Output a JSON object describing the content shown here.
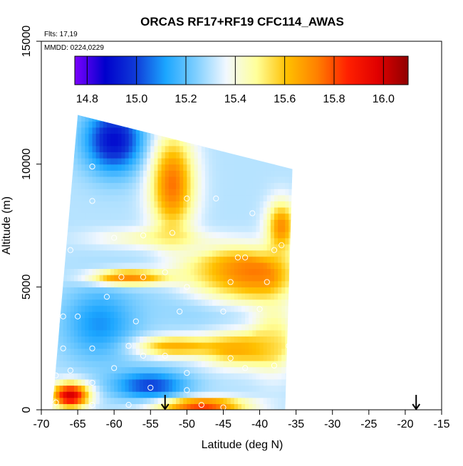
{
  "chart_data": {
    "type": "heatmap",
    "title": "ORCAS RF17+RF19 CFC114_AWAS",
    "annotations": {
      "flights": "Flts: 17,19",
      "dates": "MMDD: 0224,0229"
    },
    "xlabel": "Latitude (deg N)",
    "ylabel": "Altitude (m)",
    "xlim": [
      -70,
      -15
    ],
    "ylim": [
      0,
      15000
    ],
    "xticks": [
      "-70",
      "-65",
      "-60",
      "-55",
      "-50",
      "-45",
      "-40",
      "-35",
      "-30",
      "-25",
      "-20",
      "-15"
    ],
    "yticks": [
      "0",
      "5000",
      "10000",
      "15000"
    ],
    "colorbar": {
      "range": [
        14.75,
        16.1
      ],
      "ticks": [
        "14.8",
        "15.0",
        "15.2",
        "15.4",
        "15.6",
        "15.8",
        "16.0"
      ],
      "colors": [
        "#7b00ff",
        "#0000cc",
        "#0f3ad8",
        "#1ba6ff",
        "#7fcfff",
        "#f2f8ff",
        "#ffff99",
        "#ffc000",
        "#ff8000",
        "#ff2000",
        "#e00000",
        "#900000"
      ]
    },
    "region": {
      "bottom_lat": [
        -68.5,
        -36.5
      ],
      "top_lat": [
        -65,
        -35.5
      ],
      "top_alt": [
        12000,
        9800
      ]
    },
    "field_blobs": [
      {
        "lat": -43,
        "alt": 5500,
        "rx": 7,
        "ry": 1000,
        "value": 15.95
      },
      {
        "lat": -52,
        "alt": 9200,
        "rx": 3,
        "ry": 2000,
        "value": 15.75
      },
      {
        "lat": -60,
        "alt": 11000,
        "rx": 4,
        "ry": 1300,
        "value": 14.9
      },
      {
        "lat": -66,
        "alt": 600,
        "rx": 2.5,
        "ry": 500,
        "value": 16.0
      },
      {
        "lat": -48,
        "alt": 200,
        "rx": 6,
        "ry": 300,
        "value": 15.85
      },
      {
        "lat": -43,
        "alt": 2500,
        "rx": 5,
        "ry": 700,
        "value": 15.65
      },
      {
        "lat": -55,
        "alt": 1000,
        "rx": 5,
        "ry": 600,
        "value": 15.0
      },
      {
        "lat": -58,
        "alt": 5400,
        "rx": 5,
        "ry": 300,
        "value": 15.8
      },
      {
        "lat": -52,
        "alt": 2600,
        "rx": 5,
        "ry": 400,
        "value": 15.65
      },
      {
        "lat": -37,
        "alt": 7500,
        "rx": 2,
        "ry": 1000,
        "value": 15.7
      },
      {
        "lat": -55,
        "alt": 7000,
        "rx": 8,
        "ry": 400,
        "value": 15.45
      },
      {
        "lat": -47,
        "alt": 5000,
        "rx": 8,
        "ry": 1500,
        "value": 15.2
      },
      {
        "lat": -62,
        "alt": 3500,
        "rx": 5,
        "ry": 1500,
        "value": 15.1
      },
      {
        "lat": -38,
        "alt": 3000,
        "rx": 3,
        "ry": 1500,
        "value": 15.5
      }
    ],
    "base_value": 15.3,
    "samples": [
      {
        "lat": -62,
        "alt": 11900
      },
      {
        "lat": -63,
        "alt": 9900
      },
      {
        "lat": -63,
        "alt": 8500
      },
      {
        "lat": -50,
        "alt": 8600
      },
      {
        "lat": -46,
        "alt": 8600
      },
      {
        "lat": -56,
        "alt": 7100
      },
      {
        "lat": -60,
        "alt": 7000
      },
      {
        "lat": -52,
        "alt": 7200
      },
      {
        "lat": -41,
        "alt": 8000
      },
      {
        "lat": -37,
        "alt": 6700
      },
      {
        "lat": -38,
        "alt": 6500
      },
      {
        "lat": -66,
        "alt": 6500
      },
      {
        "lat": -43,
        "alt": 6200
      },
      {
        "lat": -42,
        "alt": 6200
      },
      {
        "lat": -53,
        "alt": 5600
      },
      {
        "lat": -56,
        "alt": 5400
      },
      {
        "lat": -59,
        "alt": 5400
      },
      {
        "lat": -50,
        "alt": 5000
      },
      {
        "lat": -44,
        "alt": 5200
      },
      {
        "lat": -39,
        "alt": 5200
      },
      {
        "lat": -61,
        "alt": 4600
      },
      {
        "lat": -40,
        "alt": 4100
      },
      {
        "lat": -45,
        "alt": 4000
      },
      {
        "lat": -51,
        "alt": 4000
      },
      {
        "lat": -57,
        "alt": 3600
      },
      {
        "lat": -65,
        "alt": 3800
      },
      {
        "lat": -67,
        "alt": 3800
      },
      {
        "lat": -58,
        "alt": 2600
      },
      {
        "lat": -63,
        "alt": 2500
      },
      {
        "lat": -56,
        "alt": 2200
      },
      {
        "lat": -53,
        "alt": 2200
      },
      {
        "lat": -44,
        "alt": 2100
      },
      {
        "lat": -67,
        "alt": 2500
      },
      {
        "lat": -36,
        "alt": 2600
      },
      {
        "lat": -38,
        "alt": 1800
      },
      {
        "lat": -42,
        "alt": 1700
      },
      {
        "lat": -60,
        "alt": 1700
      },
      {
        "lat": -66,
        "alt": 1600
      },
      {
        "lat": -50,
        "alt": 1500
      },
      {
        "lat": -63,
        "alt": 1100
      },
      {
        "lat": -55,
        "alt": 900
      },
      {
        "lat": -50,
        "alt": 800
      },
      {
        "lat": -68,
        "alt": 1400
      },
      {
        "lat": -68,
        "alt": 300
      },
      {
        "lat": -63,
        "alt": 200
      },
      {
        "lat": -58,
        "alt": 200
      },
      {
        "lat": -48,
        "alt": 200
      },
      {
        "lat": -45,
        "alt": 100
      }
    ],
    "arrows": [
      {
        "lat": -53,
        "alt": 0
      },
      {
        "lat": -18.5,
        "alt": 0
      }
    ]
  }
}
